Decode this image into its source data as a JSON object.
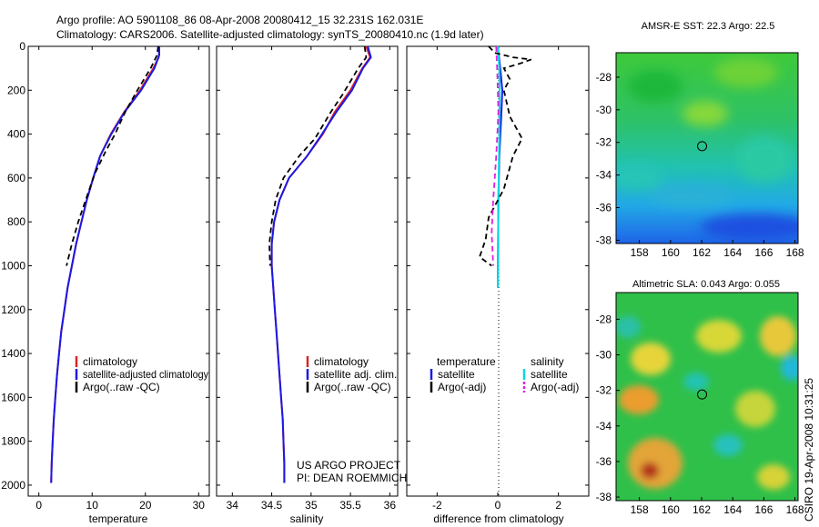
{
  "header": {
    "title_line1": "Argo profile: AO 5901108_86 08-Apr-2008 20080412_15 32.231S 162.031E",
    "title_line2": "Climatology: CARS2006. Satellite-adjusted climatology: synTS_20080410.nc (1.9d later)"
  },
  "footer": {
    "project": "US ARGO PROJECT",
    "pi": "PI: DEAN ROEMMICH",
    "credit": "CSIRO 19-Apr-2008 10:31:25"
  },
  "colors": {
    "climatology": "#dd2222",
    "satellite_adjusted": "#1a1ae6",
    "argo": "#000000",
    "sat_salinity": "#00d8e0",
    "argo_salinity": "#e020e0"
  },
  "chart_data": [
    {
      "type": "line",
      "id": "temperature",
      "xlabel": "temperature",
      "ylabel": "pressure",
      "xlim": [
        -2,
        32
      ],
      "ylim": [
        2050,
        0
      ],
      "xticks": [
        0,
        10,
        20,
        30
      ],
      "yticks": [
        0,
        200,
        400,
        600,
        800,
        1000,
        1200,
        1400,
        1600,
        1800,
        2000
      ],
      "legend": [
        "climatology",
        "satellite-adjusted climatology",
        "Argo(..raw -QC)"
      ],
      "series": [
        {
          "name": "climatology",
          "color": "#dd2222",
          "dash": false,
          "points": [
            [
              22.6,
              0
            ],
            [
              22.5,
              50
            ],
            [
              21.5,
              100
            ],
            [
              19.0,
              200
            ],
            [
              16.0,
              300
            ],
            [
              13.5,
              400
            ],
            [
              11.5,
              500
            ],
            [
              10.2,
              600
            ],
            [
              9.0,
              700
            ],
            [
              8.0,
              800
            ],
            [
              7.0,
              900
            ],
            [
              6.2,
              1000
            ],
            [
              5.4,
              1100
            ],
            [
              4.8,
              1200
            ],
            [
              4.2,
              1300
            ],
            [
              3.8,
              1400
            ],
            [
              3.4,
              1500
            ],
            [
              3.1,
              1600
            ],
            [
              2.8,
              1700
            ],
            [
              2.6,
              1800
            ],
            [
              2.4,
              1900
            ],
            [
              2.3,
              1990
            ]
          ]
        },
        {
          "name": "satellite-adjusted climatology",
          "color": "#1a1ae6",
          "dash": false,
          "points": [
            [
              22.6,
              0
            ],
            [
              22.6,
              40
            ],
            [
              21.7,
              100
            ],
            [
              19.2,
              200
            ],
            [
              16.1,
              300
            ],
            [
              13.6,
              400
            ],
            [
              11.5,
              500
            ],
            [
              10.2,
              600
            ],
            [
              9.0,
              700
            ],
            [
              8.0,
              800
            ],
            [
              7.0,
              900
            ],
            [
              6.2,
              1000
            ],
            [
              5.4,
              1100
            ],
            [
              4.8,
              1200
            ],
            [
              4.2,
              1300
            ],
            [
              3.8,
              1400
            ],
            [
              3.4,
              1500
            ],
            [
              3.1,
              1600
            ],
            [
              2.8,
              1700
            ],
            [
              2.6,
              1800
            ],
            [
              2.4,
              1900
            ],
            [
              2.3,
              1990
            ]
          ]
        },
        {
          "name": "Argo(..raw -QC)",
          "color": "#000000",
          "dash": true,
          "points": [
            [
              22.4,
              0
            ],
            [
              22.2,
              40
            ],
            [
              21.0,
              100
            ],
            [
              18.5,
              200
            ],
            [
              16.2,
              300
            ],
            [
              14.3,
              400
            ],
            [
              12.5,
              480
            ],
            [
              10.5,
              580
            ],
            [
              8.8,
              700
            ],
            [
              7.4,
              800
            ],
            [
              6.2,
              900
            ],
            [
              5.2,
              1000
            ]
          ]
        }
      ]
    },
    {
      "type": "line",
      "id": "salinity",
      "xlabel": "salinity",
      "ylabel": "pressure",
      "xlim": [
        33.8,
        36.1
      ],
      "ylim": [
        2050,
        0
      ],
      "xticks": [
        34,
        34.5,
        35,
        35.5,
        36
      ],
      "yticks": [],
      "legend": [
        "climatology",
        "satellite adj. clim.",
        "Argo(..raw -QC)"
      ],
      "series": [
        {
          "name": "climatology",
          "color": "#dd2222",
          "dash": false,
          "points": [
            [
              35.7,
              0
            ],
            [
              35.75,
              50
            ],
            [
              35.65,
              100
            ],
            [
              35.5,
              200
            ],
            [
              35.3,
              300
            ],
            [
              35.15,
              400
            ],
            [
              34.95,
              500
            ],
            [
              34.72,
              600
            ],
            [
              34.6,
              700
            ],
            [
              34.53,
              800
            ],
            [
              34.5,
              900
            ],
            [
              34.5,
              1000
            ],
            [
              34.52,
              1100
            ],
            [
              34.54,
              1200
            ],
            [
              34.56,
              1300
            ],
            [
              34.58,
              1400
            ],
            [
              34.6,
              1500
            ],
            [
              34.62,
              1600
            ],
            [
              34.64,
              1700
            ],
            [
              34.65,
              1800
            ],
            [
              34.66,
              1900
            ],
            [
              34.66,
              1990
            ]
          ]
        },
        {
          "name": "satellite adj. clim.",
          "color": "#1a1ae6",
          "dash": false,
          "points": [
            [
              35.72,
              0
            ],
            [
              35.76,
              50
            ],
            [
              35.66,
              100
            ],
            [
              35.52,
              200
            ],
            [
              35.32,
              300
            ],
            [
              35.14,
              400
            ],
            [
              34.95,
              500
            ],
            [
              34.72,
              600
            ],
            [
              34.6,
              700
            ],
            [
              34.53,
              800
            ],
            [
              34.5,
              900
            ],
            [
              34.5,
              1000
            ],
            [
              34.52,
              1100
            ],
            [
              34.54,
              1200
            ],
            [
              34.56,
              1300
            ],
            [
              34.58,
              1400
            ],
            [
              34.6,
              1500
            ],
            [
              34.62,
              1600
            ],
            [
              34.64,
              1700
            ],
            [
              34.65,
              1800
            ],
            [
              34.66,
              1900
            ],
            [
              34.66,
              1990
            ]
          ]
        },
        {
          "name": "Argo(..raw -QC)",
          "color": "#000000",
          "dash": true,
          "points": [
            [
              35.68,
              0
            ],
            [
              35.7,
              50
            ],
            [
              35.6,
              100
            ],
            [
              35.4,
              220
            ],
            [
              35.25,
              300
            ],
            [
              35.05,
              420
            ],
            [
              34.85,
              500
            ],
            [
              34.65,
              600
            ],
            [
              34.55,
              700
            ],
            [
              34.5,
              800
            ],
            [
              34.47,
              900
            ],
            [
              34.48,
              1000
            ]
          ]
        }
      ]
    },
    {
      "type": "line",
      "id": "difference",
      "xlabel": "difference from climatology",
      "ylabel": "pressure",
      "xlim": [
        -3,
        3
      ],
      "ylim": [
        2050,
        0
      ],
      "xticks": [
        -2,
        0,
        2
      ],
      "yticks": [],
      "legend_left_title": "temperature",
      "legend_right_title": "salinity",
      "legend": [
        "satellite",
        "Argo(-adj)",
        "satellite",
        "Argo(-adj)"
      ],
      "series": [
        {
          "name": "temperature satellite",
          "color": "#1a1ae6",
          "dash": false,
          "points": [
            [
              0,
              0
            ],
            [
              0.08,
              100
            ],
            [
              0.15,
              200
            ],
            [
              0.12,
              300
            ],
            [
              0.05,
              500
            ],
            [
              0.02,
              700
            ],
            [
              0,
              1100
            ]
          ]
        },
        {
          "name": "salinity satellite",
          "color": "#00d8e0",
          "dash": false,
          "points": [
            [
              0,
              0
            ],
            [
              0.05,
              100
            ],
            [
              0.06,
              200
            ],
            [
              0.05,
              400
            ],
            [
              0.02,
              700
            ],
            [
              0,
              1100
            ]
          ]
        },
        {
          "name": "temperature Argo(-adj)",
          "color": "#000000",
          "dash": true,
          "points": [
            [
              -0.3,
              0
            ],
            [
              -0.1,
              30
            ],
            [
              0.5,
              50
            ],
            [
              1.1,
              60
            ],
            [
              0.7,
              80
            ],
            [
              0.2,
              100
            ],
            [
              0.4,
              150
            ],
            [
              0.2,
              200
            ],
            [
              0.4,
              320
            ],
            [
              0.8,
              420
            ],
            [
              0.5,
              500
            ],
            [
              0.2,
              650
            ],
            [
              -0.3,
              780
            ],
            [
              -0.4,
              880
            ],
            [
              -0.6,
              960
            ],
            [
              -0.2,
              1000
            ]
          ]
        },
        {
          "name": "salinity Argo(-adj)",
          "color": "#e020e0",
          "dash": true,
          "points": [
            [
              -0.05,
              0
            ],
            [
              -0.02,
              100
            ],
            [
              0.02,
              300
            ],
            [
              -0.05,
              500
            ],
            [
              -0.1,
              600
            ],
            [
              -0.15,
              700
            ],
            [
              -0.2,
              850
            ],
            [
              -0.15,
              1000
            ]
          ]
        }
      ]
    },
    {
      "type": "heatmap",
      "id": "sst_map",
      "title": "AMSR-E SST: 22.3  Argo: 22.5",
      "xlim": [
        156.5,
        168.2
      ],
      "ylim": [
        -38.2,
        -26.5
      ],
      "xticks": [
        158,
        160,
        162,
        164,
        166,
        168
      ],
      "yticks": [
        -28,
        -30,
        -32,
        -34,
        -36,
        -38
      ],
      "marker": [
        162.03,
        -32.23
      ]
    },
    {
      "type": "heatmap",
      "id": "sla_map",
      "title": "Altimetric SLA: 0.043  Argo: 0.055",
      "xlim": [
        156.5,
        168.2
      ],
      "ylim": [
        -38.2,
        -26.5
      ],
      "xticks": [
        158,
        160,
        162,
        164,
        166,
        168
      ],
      "yticks": [
        -28,
        -30,
        -32,
        -34,
        -36,
        -38
      ],
      "marker": [
        162.03,
        -32.23
      ]
    }
  ]
}
